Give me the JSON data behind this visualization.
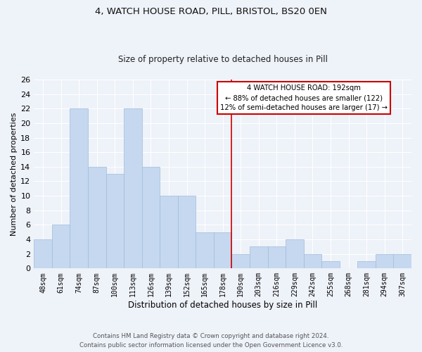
{
  "title1": "4, WATCH HOUSE ROAD, PILL, BRISTOL, BS20 0EN",
  "title2": "Size of property relative to detached houses in Pill",
  "xlabel": "Distribution of detached houses by size in Pill",
  "ylabel": "Number of detached properties",
  "categories": [
    "48sqm",
    "61sqm",
    "74sqm",
    "87sqm",
    "100sqm",
    "113sqm",
    "126sqm",
    "139sqm",
    "152sqm",
    "165sqm",
    "178sqm",
    "190sqm",
    "203sqm",
    "216sqm",
    "229sqm",
    "242sqm",
    "255sqm",
    "268sqm",
    "281sqm",
    "294sqm",
    "307sqm"
  ],
  "values": [
    4,
    6,
    22,
    14,
    13,
    22,
    14,
    10,
    10,
    5,
    5,
    2,
    3,
    3,
    4,
    2,
    1,
    0,
    1,
    2,
    2
  ],
  "bar_color": "#c5d8ef",
  "bar_edge_color": "#a0bcd8",
  "vline_color": "#cc0000",
  "annotation_title": "4 WATCH HOUSE ROAD: 192sqm",
  "annotation_line1": "← 88% of detached houses are smaller (122)",
  "annotation_line2": "12% of semi-detached houses are larger (17) →",
  "annotation_box_color": "#cc0000",
  "ylim": [
    0,
    26
  ],
  "yticks": [
    0,
    2,
    4,
    6,
    8,
    10,
    12,
    14,
    16,
    18,
    20,
    22,
    24,
    26
  ],
  "footer1": "Contains HM Land Registry data © Crown copyright and database right 2024.",
  "footer2": "Contains public sector information licensed under the Open Government Licence v3.0.",
  "bg_color": "#eef2f9",
  "grid_color": "#ffffff"
}
